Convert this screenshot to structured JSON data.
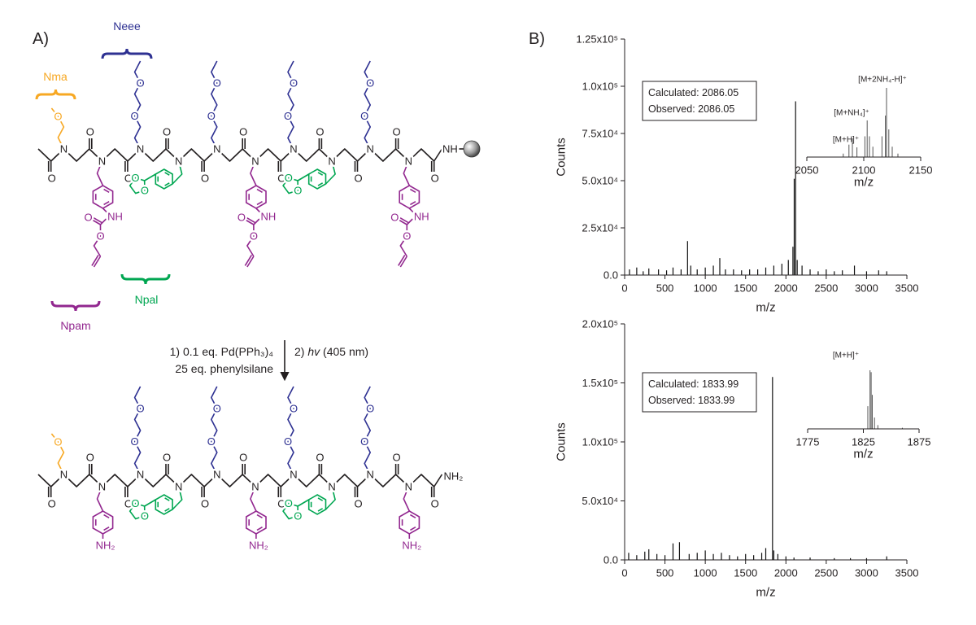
{
  "panel_a": {
    "label": "A)",
    "residue_labels": {
      "nma": "Nma",
      "neee": "Neee",
      "npal": "Npal",
      "npam": "Npam"
    },
    "atoms": {
      "o": "O",
      "n": "N",
      "nh": "NH",
      "nh2": "NH₂"
    },
    "steps": {
      "step1": "1) 0.1 eq. Pd(PPh₃)₄",
      "step1b": "25 eq. phenylsilane",
      "step2_prefix": "2) ",
      "step2_hv": "hv",
      "step2_rest": " (405 nm)"
    }
  },
  "panel_b": {
    "label": "B)"
  },
  "chart_data": [
    {
      "type": "stem",
      "xlabel": "m/z",
      "ylabel": "Counts",
      "color": "#111111",
      "box": [
        "Calculated: 2086.05",
        "Observed: 2086.05"
      ],
      "x": [
        60,
        150,
        230,
        300,
        420,
        520,
        600,
        700,
        780,
        820,
        900,
        1000,
        1100,
        1180,
        1250,
        1350,
        1450,
        1550,
        1650,
        1750,
        1850,
        1950,
        2030,
        2087,
        2103,
        2120,
        2140,
        2200,
        2300,
        2400,
        2500,
        2600,
        2700,
        2850,
        3000,
        3150,
        3250
      ],
      "values": [
        3000,
        4000,
        2000,
        3500,
        3000,
        2500,
        4000,
        3000,
        18000,
        5000,
        3000,
        4000,
        5000,
        9000,
        3000,
        3000,
        2500,
        3000,
        3000,
        4000,
        5000,
        6000,
        8000,
        15000,
        51000,
        92000,
        8000,
        5000,
        3000,
        2000,
        3000,
        2000,
        2500,
        5000,
        2000,
        2500,
        2000
      ],
      "xlim": [
        0,
        3500
      ],
      "xticks": [
        0,
        500,
        1000,
        1500,
        2000,
        2500,
        3000,
        3500
      ],
      "ylim": [
        0,
        125000
      ],
      "yticks": [
        {
          "value": 0,
          "label": "0.0"
        },
        {
          "value": 25000,
          "label": "2.5x10⁴"
        },
        {
          "value": 50000,
          "label": "5.0x10⁴"
        },
        {
          "value": 75000,
          "label": "7.5x10⁴"
        },
        {
          "value": 100000,
          "label": "1.0x10⁵"
        },
        {
          "value": 125000,
          "label": "1.25x10⁵"
        }
      ]
    },
    {
      "type": "stem",
      "xlabel": "m/z",
      "color": "#555555",
      "annotations": [
        "[M+2NH₄-H]⁺",
        "[M+NH₄]⁺",
        "[M+H]⁺"
      ],
      "x": [
        2082,
        2087,
        2090,
        2094,
        2101,
        2103,
        2105,
        2108,
        2116,
        2119,
        2120,
        2122,
        2125,
        2130
      ],
      "values": [
        5000,
        18000,
        27000,
        14000,
        30000,
        53000,
        30000,
        15000,
        30000,
        60000,
        100000,
        40000,
        15000,
        5000
      ],
      "xlim": [
        2050,
        2150
      ],
      "xticks": [
        2050,
        2100,
        2150
      ],
      "ylim": [
        0,
        100000
      ]
    },
    {
      "type": "stem",
      "xlabel": "m/z",
      "ylabel": "Counts",
      "color": "#111111",
      "box": [
        "Calculated: 1833.99",
        "Observed: 1833.99"
      ],
      "x": [
        50,
        150,
        250,
        300,
        400,
        500,
        600,
        680,
        800,
        900,
        1000,
        1100,
        1200,
        1300,
        1400,
        1500,
        1600,
        1700,
        1750,
        1834,
        1850,
        1900,
        2000,
        2100,
        2300,
        2600,
        2800,
        3000,
        3250
      ],
      "values": [
        6000,
        4000,
        7000,
        9000,
        5000,
        4000,
        14000,
        15000,
        5000,
        6000,
        8000,
        5000,
        6000,
        4000,
        3000,
        5000,
        4000,
        6000,
        10000,
        155000,
        8000,
        5000,
        3000,
        2000,
        2000,
        1500,
        1500,
        1500,
        3000
      ],
      "xlim": [
        0,
        3500
      ],
      "xticks": [
        0,
        500,
        1000,
        1500,
        2000,
        2500,
        3000,
        3500
      ],
      "ylim": [
        0,
        200000
      ],
      "yticks": [
        {
          "value": 0,
          "label": "0.0"
        },
        {
          "value": 50000,
          "label": "5.0x10⁴"
        },
        {
          "value": 100000,
          "label": "1.0x10⁵"
        },
        {
          "value": 150000,
          "label": "1.5x10⁵"
        },
        {
          "value": 200000,
          "label": "2.0x10⁵"
        }
      ]
    },
    {
      "type": "stem",
      "xlabel": "m/z",
      "color": "#555555",
      "annotations": [
        "[M+H]⁺"
      ],
      "x": [
        1829,
        1831,
        1832,
        1833,
        1835,
        1838,
        1860
      ],
      "values": [
        60000,
        155000,
        150000,
        90000,
        30000,
        10000,
        3000
      ],
      "xlim": [
        1775,
        1875
      ],
      "xticks": [
        1775,
        1825,
        1875
      ],
      "ylim": [
        0,
        155000
      ]
    }
  ]
}
